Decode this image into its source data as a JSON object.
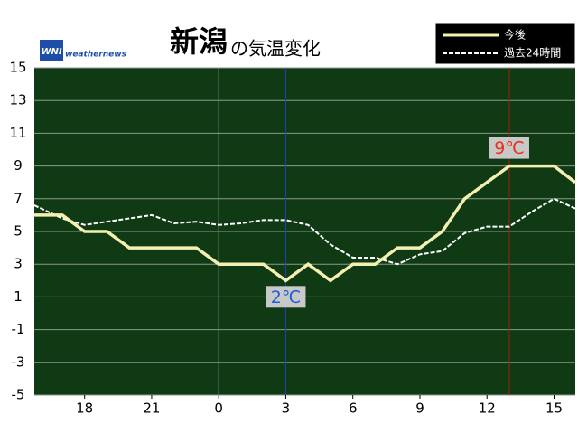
{
  "chart_data": {
    "type": "line",
    "title_main": "新潟",
    "title_sub": "の気温変化",
    "logo_mark": "WNI",
    "logo": "weathernews",
    "xlim": [
      15.75,
      39.95
    ],
    "xticks": [
      18,
      21,
      {
        "value": 24,
        "label": "0"
      },
      {
        "value": 27,
        "label": "3"
      },
      {
        "value": 30,
        "label": "6"
      },
      {
        "value": 33,
        "label": "9"
      },
      {
        "value": 36,
        "label": "12"
      },
      {
        "value": 39,
        "label": "15"
      }
    ],
    "ylim": [
      -5,
      15
    ],
    "yticks": [
      -5,
      -3,
      -1,
      1,
      3,
      5,
      7,
      9,
      11,
      13,
      15
    ],
    "grid": true,
    "series": [
      {
        "name": "今後",
        "color": "#f5f0b0",
        "dash": false,
        "x": [
          15.75,
          17,
          18,
          19,
          20,
          21,
          22,
          23,
          24,
          25,
          26,
          27,
          28,
          29,
          30,
          31,
          32,
          33,
          34,
          35,
          36,
          37,
          38,
          39,
          39.95
        ],
        "values": [
          6,
          6,
          5,
          5,
          4,
          4,
          4,
          4,
          3,
          3,
          3,
          2,
          3,
          2,
          3,
          3,
          4,
          4,
          5,
          7,
          8,
          9,
          9,
          9,
          8
        ]
      },
      {
        "name": "過去24時間",
        "color": "#ffffff",
        "dash": true,
        "x": [
          15.75,
          17,
          18,
          19,
          20,
          21,
          22,
          23,
          24,
          25,
          26,
          27,
          28,
          29,
          30,
          31,
          32,
          33,
          34,
          35,
          36,
          37,
          38,
          39,
          39.95
        ],
        "values": [
          6.6,
          5.8,
          5.4,
          5.6,
          5.8,
          6.0,
          5.5,
          5.6,
          5.4,
          5.5,
          5.7,
          5.7,
          5.4,
          4.2,
          3.4,
          3.4,
          3.0,
          3.6,
          3.8,
          4.9,
          5.3,
          5.3,
          6.2,
          7.0,
          6.4
        ]
      }
    ],
    "markers": [
      {
        "x": 24,
        "color": "#999999"
      }
    ],
    "annotations": [
      {
        "x": 27,
        "value": 2,
        "label": "2℃",
        "color": "#1f5fd6",
        "line_color": "#2040c0"
      },
      {
        "x": 37,
        "value": 9,
        "label": "9℃",
        "color": "#e8301a",
        "line_color": "#a02010"
      }
    ]
  }
}
